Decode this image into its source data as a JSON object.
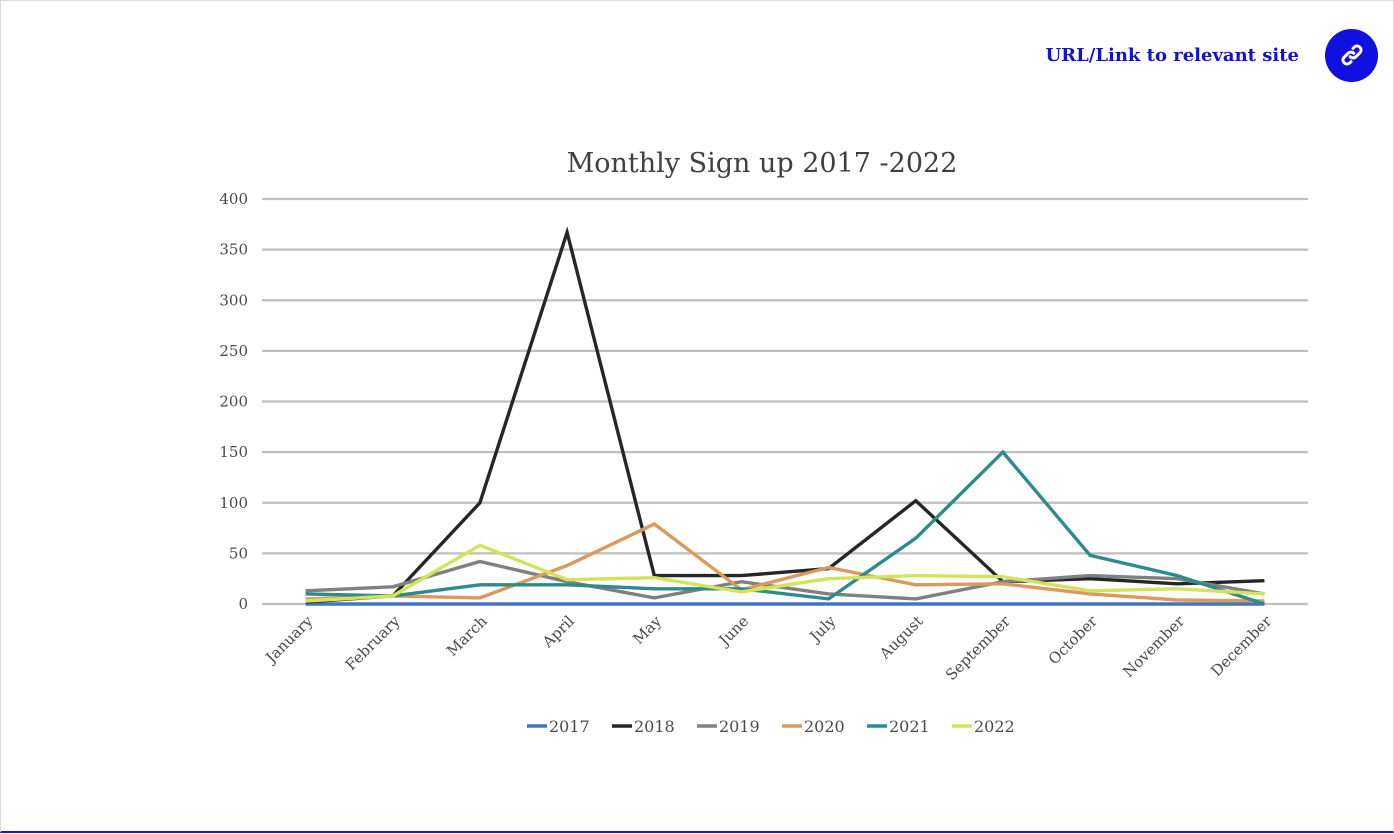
{
  "link": {
    "label": "URL/Link to relevant site",
    "icon": "link-icon",
    "icon_color": "#1010e0",
    "text_color": "#1212d6"
  },
  "chart_data": {
    "type": "line",
    "title": "Monthly Sign up 2017 -2022",
    "xlabel": "",
    "ylabel": "",
    "ylim": [
      0,
      400
    ],
    "yticks": [
      0,
      50,
      100,
      150,
      200,
      250,
      300,
      350,
      400
    ],
    "grid": true,
    "legend_position": "bottom",
    "categories": [
      "January",
      "February",
      "March",
      "April",
      "May",
      "June",
      "July",
      "August",
      "September",
      "October",
      "November",
      "December"
    ],
    "series": [
      {
        "name": "2017",
        "color": "#4472c4",
        "values": [
          0,
          0,
          0,
          0,
          0,
          0,
          0,
          0,
          0,
          0,
          0,
          0
        ]
      },
      {
        "name": "2018",
        "color": "#262626",
        "values": [
          2,
          8,
          100,
          367,
          28,
          28,
          35,
          102,
          22,
          25,
          20,
          23
        ]
      },
      {
        "name": "2019",
        "color": "#808080",
        "values": [
          13,
          17,
          42,
          22,
          6,
          22,
          10,
          5,
          22,
          28,
          25,
          10
        ]
      },
      {
        "name": "2020",
        "color": "#d99a5e",
        "values": [
          5,
          8,
          6,
          38,
          79,
          14,
          36,
          19,
          20,
          10,
          4,
          3
        ]
      },
      {
        "name": "2021",
        "color": "#2e8b8b",
        "values": [
          10,
          8,
          19,
          19,
          15,
          15,
          5,
          65,
          150,
          48,
          28,
          0
        ]
      },
      {
        "name": "2022",
        "color": "#d4e35a",
        "values": [
          3,
          8,
          58,
          24,
          26,
          12,
          25,
          28,
          27,
          13,
          15,
          10
        ]
      }
    ]
  }
}
